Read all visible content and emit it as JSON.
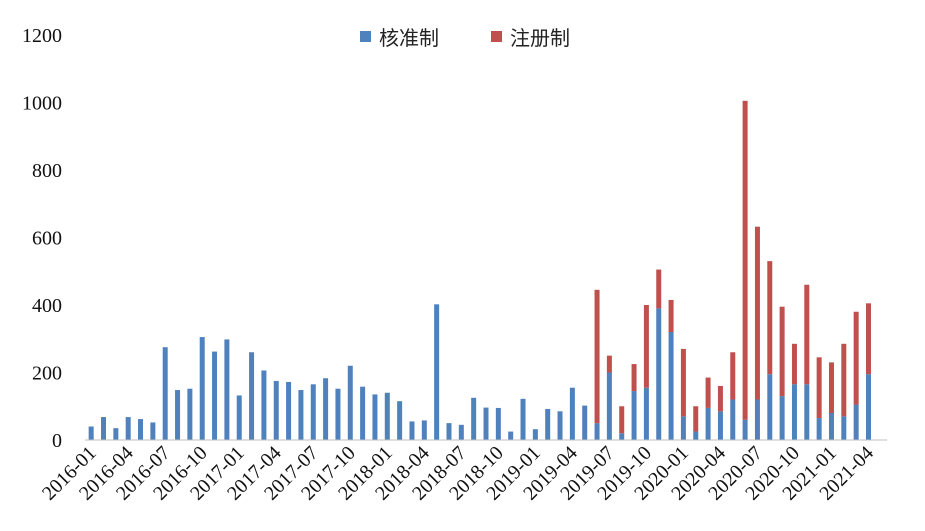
{
  "chart_data": {
    "type": "bar",
    "stacked": true,
    "title": "",
    "xlabel": "",
    "ylabel": "",
    "ylim": [
      0,
      1200
    ],
    "yticks": [
      0,
      200,
      400,
      600,
      800,
      1000,
      1200
    ],
    "grid": false,
    "legend_position": "top-center",
    "categories": [
      "2016-01",
      "2016-02",
      "2016-03",
      "2016-04",
      "2016-05",
      "2016-06",
      "2016-07",
      "2016-08",
      "2016-09",
      "2016-10",
      "2016-11",
      "2016-12",
      "2017-01",
      "2017-02",
      "2017-03",
      "2017-04",
      "2017-05",
      "2017-06",
      "2017-07",
      "2017-08",
      "2017-09",
      "2017-10",
      "2017-11",
      "2017-12",
      "2018-01",
      "2018-02",
      "2018-03",
      "2018-04",
      "2018-05",
      "2018-06",
      "2018-07",
      "2018-08",
      "2018-09",
      "2018-10",
      "2018-11",
      "2018-12",
      "2019-01",
      "2019-02",
      "2019-03",
      "2019-04",
      "2019-05",
      "2019-06",
      "2019-07",
      "2019-08",
      "2019-09",
      "2019-10",
      "2019-11",
      "2019-12",
      "2020-01",
      "2020-02",
      "2020-03",
      "2020-04",
      "2020-05",
      "2020-06",
      "2020-07",
      "2020-08",
      "2020-09",
      "2020-10",
      "2020-11",
      "2020-12",
      "2021-01",
      "2021-02",
      "2021-03",
      "2021-04",
      "2021-05"
    ],
    "tick_labels": [
      "2016-01",
      "2016-04",
      "2016-07",
      "2016-10",
      "2017-01",
      "2017-04",
      "2017-07",
      "2017-10",
      "2018-01",
      "2018-04",
      "2018-07",
      "2018-10",
      "2019-01",
      "2019-04",
      "2019-07",
      "2019-10",
      "2020-01",
      "2020-04",
      "2020-07",
      "2020-10",
      "2021-01",
      "2021-04"
    ],
    "series": [
      {
        "name": "核准制",
        "color": "#4f81bd",
        "values": [
          40,
          68,
          35,
          68,
          62,
          52,
          275,
          148,
          152,
          305,
          262,
          298,
          132,
          260,
          206,
          175,
          172,
          148,
          165,
          183,
          152,
          220,
          158,
          135,
          140,
          115,
          55,
          58,
          402,
          50,
          45,
          125,
          96,
          95,
          25,
          122,
          32,
          92,
          85,
          155,
          102,
          50,
          200,
          20,
          145,
          155,
          390,
          320,
          70,
          25,
          95,
          85,
          120,
          60,
          120,
          195,
          130,
          165,
          165,
          65,
          80,
          70,
          105,
          195,
          0
        ]
      },
      {
        "name": "注册制",
        "color": "#c0504d",
        "values": [
          0,
          0,
          0,
          0,
          0,
          0,
          0,
          0,
          0,
          0,
          0,
          0,
          0,
          0,
          0,
          0,
          0,
          0,
          0,
          0,
          0,
          0,
          0,
          0,
          0,
          0,
          0,
          0,
          0,
          0,
          0,
          0,
          0,
          0,
          0,
          0,
          0,
          0,
          0,
          0,
          0,
          395,
          50,
          80,
          80,
          245,
          115,
          95,
          200,
          75,
          90,
          75,
          140,
          945,
          512,
          335,
          265,
          120,
          295,
          180,
          150,
          215,
          275,
          210,
          0
        ]
      }
    ]
  }
}
